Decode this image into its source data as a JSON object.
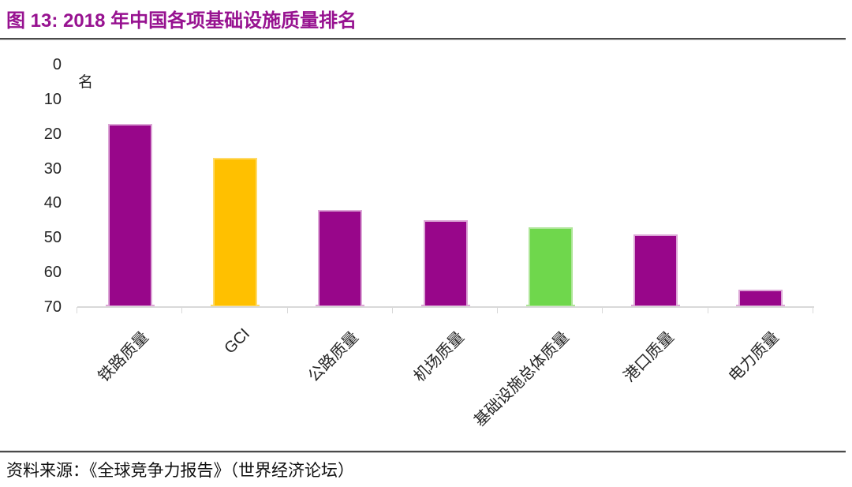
{
  "title": {
    "text": "图 13: 2018 年中国各项基础设施质量排名"
  },
  "source": {
    "text": "资料来源：《全球竞争力报告》（世界经济论坛）"
  },
  "colors": {
    "title_text": "#971290",
    "divider": "#4A4A4A",
    "axis_line": "#D9D9D9",
    "axis_text": "#262626",
    "source_text": "#111111",
    "bar_purple": "#98068A",
    "bar_yellow": "#FFC000",
    "bar_green": "#6FD74C"
  },
  "chart_data": {
    "type": "bar",
    "title": "2018 年中国各项基础设施质量排名",
    "xlabel": "",
    "ylabel": "名",
    "unit_label": "名",
    "categories": [
      "铁路质量",
      "GCI",
      "公路质量",
      "机场质量",
      "基础设施总体质量",
      "港口质量",
      "电力质量"
    ],
    "values": [
      17,
      27,
      42,
      45,
      47,
      49,
      65
    ],
    "bar_fill_colors": [
      "#98068A",
      "#FFC000",
      "#98068A",
      "#98068A",
      "#6FD74C",
      "#98068A",
      "#98068A"
    ],
    "bar_edge_colors": [
      "#DCA6D6",
      "#FFDB69",
      "#DCA6D6",
      "#DCA6D6",
      "#AEE598",
      "#DCA6D6",
      "#DCA6D6"
    ],
    "yticks": [
      0,
      10,
      20,
      30,
      40,
      50,
      60,
      70
    ],
    "ylim": [
      0,
      70
    ],
    "y_axis_inverted": true,
    "grid": false,
    "legend_position": "none"
  }
}
